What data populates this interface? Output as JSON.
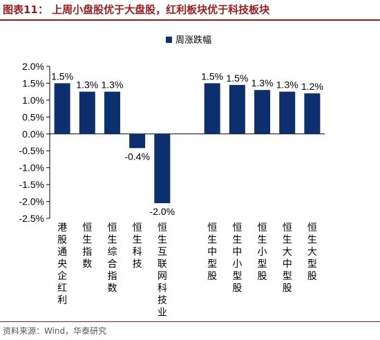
{
  "figure": {
    "title": "图表11：  上周小盘股优于大盘股，红利板块优于科技板块",
    "source": "资料来源：Wind，华泰研究"
  },
  "colors": {
    "bar": "#0d2f6e",
    "title": "#9a1c1c",
    "rule": "#8b1a1a"
  },
  "chart_data": {
    "type": "bar",
    "categories": [
      "港股通央企红利",
      "恒生指数",
      "恒生综合指数",
      "恒生科技",
      "恒生互联网科技业",
      "",
      "恒生中型股",
      "恒生中小型股",
      "恒生小型股",
      "恒生大中型股",
      "恒生大型股"
    ],
    "series": [
      {
        "name": "周涨跌幅",
        "values": [
          1.5,
          1.25,
          1.25,
          -0.42,
          -2.05,
          null,
          1.5,
          1.45,
          1.3,
          1.25,
          1.2
        ]
      }
    ],
    "data_labels": [
      "1.5%",
      "1.3%",
      "1.3%",
      "-0.4%",
      "-2.0%",
      "",
      "1.5%",
      "1.5%",
      "1.3%",
      "1.3%",
      "1.2%"
    ],
    "ylim": [
      -2.5,
      2.0
    ],
    "yticks": [
      2.0,
      1.5,
      1.0,
      0.5,
      0.0,
      -0.5,
      -1.0,
      -1.5,
      -2.0,
      -2.5
    ],
    "ytick_labels": [
      "2.0%",
      "1.5%",
      "1.0%",
      "0.5%",
      "0.0%",
      "-0.5%",
      "-1.0%",
      "-1.5%",
      "-2.0%",
      "-2.5%"
    ],
    "grid": false,
    "legend_position": "top-center",
    "xlabel": "",
    "ylabel": ""
  }
}
